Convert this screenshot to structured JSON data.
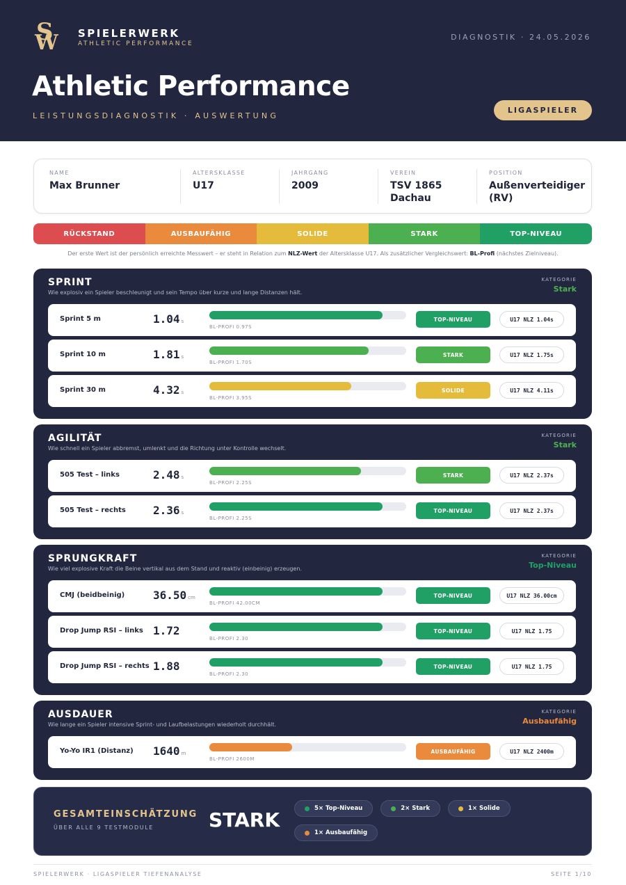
{
  "header": {
    "logo_top": "S",
    "logo_bottom": "W",
    "brand": "SPIELERWERK",
    "tagline": "ATHLETIC PERFORMANCE",
    "diagnostic": "DIAGNOSTIK · 24.05.2026",
    "title": "Athletic Performance",
    "subtitle": "LEISTUNGSDIAGNOSTIK · AUSWERTUNG",
    "badge": "LIGASPIELER"
  },
  "profile": [
    {
      "label": "NAME",
      "value": "Max Brunner"
    },
    {
      "label": "ALTERSKLASSE",
      "value": "U17"
    },
    {
      "label": "JAHRGANG",
      "value": "2009"
    },
    {
      "label": "VEREIN",
      "value": "TSV 1865 Dachau"
    },
    {
      "label": "POSITION",
      "value": "Außenverteidiger (RV)"
    }
  ],
  "scale": [
    {
      "label": "RÜCKSTAND",
      "color": "#dd4d4f"
    },
    {
      "label": "AUSBAUFÄHIG",
      "color": "#e98a3c"
    },
    {
      "label": "SOLIDE",
      "color": "#e5bb3c"
    },
    {
      "label": "STARK",
      "color": "#4caf50"
    },
    {
      "label": "TOP-NIVEAU",
      "color": "#21a066"
    }
  ],
  "note": [
    "Der erste Wert ist der persönlich erreichte Messwert – er steht in Relation zum ",
    "NLZ-Wert",
    " der Altersklasse U17. Als zusätzlicher Vergleichswert: ",
    "BL-Profi",
    " (nächstes Zielniveau)."
  ],
  "sections": [
    {
      "title": "SPRINT",
      "description": "Wie explosiv ein Spieler beschleunigt und sein Tempo über kurze und lange Distanzen hält.",
      "category_label": "KATEGORIE",
      "category": "Stark",
      "category_color": "#4caf50",
      "tests": [
        {
          "name": "Sprint 5 m",
          "value": "1.04",
          "unit": "s",
          "bar": 88,
          "bar_color": "#21a066",
          "reference": "BL-PROFI 0.97S",
          "rating": "TOP-NIVEAU",
          "rating_color": "#21a066",
          "nlz": "U17 NLZ 1.04s"
        },
        {
          "name": "Sprint 10 m",
          "value": "1.81",
          "unit": "s",
          "bar": 81,
          "bar_color": "#4caf50",
          "reference": "BL-PROFI 1.70S",
          "rating": "STARK",
          "rating_color": "#4caf50",
          "nlz": "U17 NLZ 1.75s"
        },
        {
          "name": "Sprint 30 m",
          "value": "4.32",
          "unit": "s",
          "bar": 72,
          "bar_color": "#e5bb3c",
          "reference": "BL-PROFI 3.95S",
          "rating": "SOLIDE",
          "rating_color": "#e5bb3c",
          "nlz": "U17 NLZ 4.11s"
        }
      ]
    },
    {
      "title": "AGILITÄT",
      "description": "Wie schnell ein Spieler abbremst, umlenkt und die Richtung unter Kontrolle wechselt.",
      "category_label": "KATEGORIE",
      "category": "Stark",
      "category_color": "#4caf50",
      "tests": [
        {
          "name": "505 Test – links",
          "value": "2.48",
          "unit": "s",
          "bar": 77,
          "bar_color": "#4caf50",
          "reference": "BL-PROFI 2.25S",
          "rating": "STARK",
          "rating_color": "#4caf50",
          "nlz": "U17 NLZ 2.37s"
        },
        {
          "name": "505 Test – rechts",
          "value": "2.36",
          "unit": "s",
          "bar": 88,
          "bar_color": "#21a066",
          "reference": "BL-PROFI 2.25S",
          "rating": "TOP-NIVEAU",
          "rating_color": "#21a066",
          "nlz": "U17 NLZ 2.37s"
        }
      ]
    },
    {
      "title": "SPRUNGKRAFT",
      "description": "Wie viel explosive Kraft die Beine vertikal aus dem Stand und reaktiv (einbeinig) erzeugen.",
      "category_label": "KATEGORIE",
      "category": "Top-Niveau",
      "category_color": "#21a066",
      "tests": [
        {
          "name": "CMJ (beidbeinig)",
          "value": "36.50",
          "unit": "cm",
          "bar": 88,
          "bar_color": "#21a066",
          "reference": "BL-PROFI 42.00CM",
          "rating": "TOP-NIVEAU",
          "rating_color": "#21a066",
          "nlz": "U17 NLZ 36.00cm"
        },
        {
          "name": "Drop Jump RSI – links",
          "value": "1.72",
          "bar": 88,
          "bar_color": "#21a066",
          "reference": "BL-PROFI 2.30",
          "rating": "TOP-NIVEAU",
          "rating_color": "#21a066",
          "nlz": "U17 NLZ 1.75"
        },
        {
          "name": "Drop Jump RSI – rechts",
          "value": "1.88",
          "bar": 88,
          "bar_color": "#21a066",
          "reference": "BL-PROFI 2.30",
          "rating": "TOP-NIVEAU",
          "rating_color": "#21a066",
          "nlz": "U17 NLZ 1.75"
        }
      ]
    },
    {
      "title": "AUSDAUER",
      "description": "Wie lange ein Spieler intensive Sprint- und Laufbelastungen wiederholt durchhält.",
      "category_label": "KATEGORIE",
      "category": "Ausbaufähig",
      "category_color": "#e98a3c",
      "tests": [
        {
          "name": "Yo-Yo IR1 (Distanz)",
          "value": "1640",
          "unit": "m",
          "bar": 42,
          "bar_color": "#e98a3c",
          "reference": "BL-PROFI 2600M",
          "rating": "AUSBAUFÄHIG",
          "rating_color": "#e98a3c",
          "nlz": "U17 NLZ 2400m"
        }
      ]
    }
  ],
  "summary": {
    "label": "GESAMTEINSCHÄTZUNG",
    "sublabel": "ÜBER ALLE 9 TESTMODULE",
    "result": "STARK",
    "chips": [
      {
        "text": "5× Top-Niveau",
        "color": "#21a066"
      },
      {
        "text": "2× Stark",
        "color": "#4caf50"
      },
      {
        "text": "1× Solide",
        "color": "#e5bb3c"
      },
      {
        "text": "1× Ausbaufähig",
        "color": "#e98a3c"
      }
    ]
  },
  "footer": {
    "left": "SPIELERWERK · LIGASPIELER TIEFENANALYSE",
    "right": "SEITE 1/10"
  }
}
